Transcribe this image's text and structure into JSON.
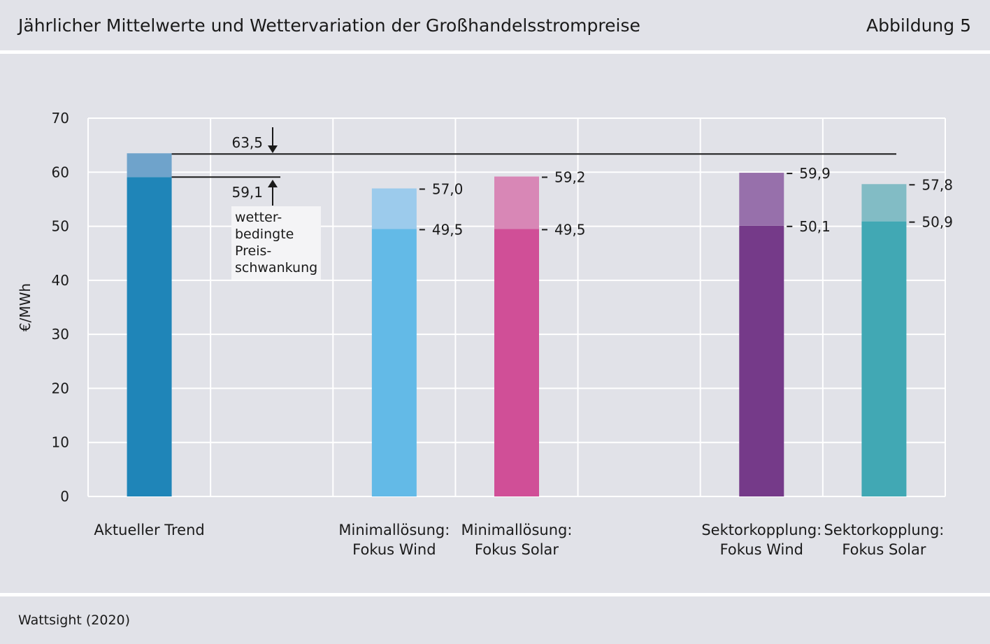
{
  "header": {
    "title": "Jährlicher Mittelwerte und Wettervariation der Großhandelsstrompreise",
    "figure_label": "Abbildung 5"
  },
  "footer": {
    "source": "Wattsight (2020)"
  },
  "colors": {
    "background": "#e1e2e8",
    "grid": "#ffffff",
    "annotation_box": "#f4f4f6"
  },
  "chart_data": {
    "type": "bar",
    "stacked": true,
    "ylabel": "€/MWh",
    "xlabel": "",
    "ylim": [
      0,
      70
    ],
    "yticks": [
      0,
      10,
      20,
      30,
      40,
      50,
      60,
      70
    ],
    "grid": true,
    "categories": [
      [
        "Aktueller Trend"
      ],
      [],
      [
        "Minimallösung:",
        "Fokus Wind"
      ],
      [
        "Minimallösung:",
        "Fokus Solar"
      ],
      [],
      [
        "Sektorkopplung:",
        "Fokus Wind"
      ],
      [
        "Sektorkopplung:",
        "Fokus Solar"
      ]
    ],
    "bars": [
      {
        "slot": 0,
        "low": 59.1,
        "high": 63.5,
        "low_label": "59,1",
        "high_label": "63,5",
        "color": "#1f85b8",
        "color_light": "#6fa3cb"
      },
      {
        "slot": 2,
        "low": 49.5,
        "high": 57.0,
        "low_label": "49,5",
        "high_label": "57,0",
        "color": "#63bae7",
        "color_light": "#9ccbec"
      },
      {
        "slot": 3,
        "low": 49.5,
        "high": 59.2,
        "low_label": "49,5",
        "high_label": "59,2",
        "color": "#d04f97",
        "color_light": "#d887b6"
      },
      {
        "slot": 5,
        "low": 50.1,
        "high": 59.9,
        "low_label": "50,1",
        "high_label": "59,9",
        "color": "#753a89",
        "color_light": "#9770ab"
      },
      {
        "slot": 6,
        "low": 50.9,
        "high": 57.8,
        "low_label": "50,9",
        "high_label": "57,8",
        "color": "#41a8b4",
        "color_light": "#82bcc5"
      }
    ],
    "annotation": {
      "lines": [
        "wetter-",
        "bedingte",
        "Preis-",
        "schwankung"
      ]
    }
  }
}
